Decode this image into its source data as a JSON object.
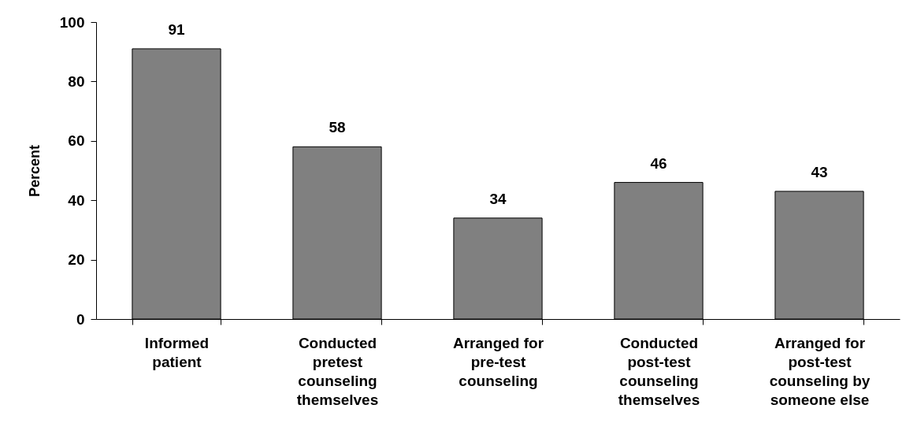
{
  "chart_data": {
    "type": "bar",
    "ylabel": "Percent",
    "categories": [
      "Informed patient",
      "Conducted pretest counseling themselves",
      "Arranged for pre-test counseling",
      "Conducted post-test counseling themselves",
      "Arranged for post-test counseling by someone else"
    ],
    "values": [
      91,
      58,
      34,
      46,
      43
    ],
    "color": "#808080",
    "ylim": [
      0,
      100
    ],
    "yticks": [
      0,
      20,
      40,
      60,
      80,
      100
    ],
    "grid": false,
    "data_labels": true
  }
}
